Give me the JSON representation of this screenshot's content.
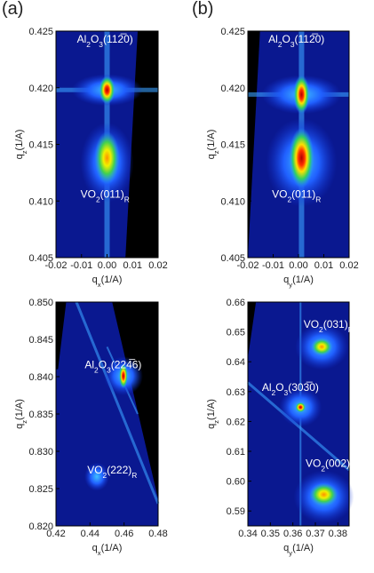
{
  "panel_labels": [
    "(a)",
    "(b)"
  ],
  "chart_data": [
    {
      "type": "image",
      "xlabel": [
        "q",
        "x",
        "(1/A)"
      ],
      "ylabel": [
        "q",
        "z",
        "(1/A)"
      ],
      "xlim": [
        -0.02,
        0.02
      ],
      "xticks": [
        -0.02,
        -0.01,
        {
          "value": 0,
          "label": "0.00"
        },
        0.01,
        0.02
      ],
      "ylim": [
        0.405,
        0.425
      ],
      "yticks": [
        0.405,
        {
          "value": 0.41,
          "label": "0.410"
        },
        0.415,
        {
          "value": 0.42,
          "label": "0.420"
        },
        0.425
      ],
      "annotations": [
        [
          "Al",
          "2",
          "O",
          "3",
          "(112̅0)"
        ],
        [
          "VO",
          "2",
          "(011)",
          "R"
        ]
      ]
    },
    {
      "type": "image",
      "xlabel": [
        "q",
        "y",
        "(1/A)"
      ],
      "ylabel": [
        "q",
        "z",
        "(1/A)"
      ],
      "xlim": [
        -0.02,
        0.02
      ],
      "xticks": [
        -0.02,
        -0.01,
        {
          "value": 0,
          "label": "0.00"
        },
        0.01,
        0.02
      ],
      "ylim": [
        0.405,
        0.425
      ],
      "yticks": [
        0.405,
        {
          "value": 0.41,
          "label": "0.410"
        },
        0.415,
        {
          "value": 0.42,
          "label": "0.420"
        },
        0.425
      ],
      "annotations": [
        [
          "Al",
          "2",
          "O",
          "3",
          "(112̅0)"
        ],
        [
          "VO",
          "2",
          "(011)",
          "R"
        ]
      ]
    },
    {
      "type": "image",
      "xlabel": [
        "q",
        "x",
        "(1/A)"
      ],
      "ylabel": [
        "q",
        "z",
        "(1/A)"
      ],
      "xlim": [
        0.42,
        0.48
      ],
      "xticks": [
        0.42,
        0.44,
        0.46,
        0.48
      ],
      "ylim": [
        0.82,
        0.85
      ],
      "yticks": [
        {
          "value": 0.82,
          "label": "0.820"
        },
        0.825,
        {
          "value": 0.83,
          "label": "0.830"
        },
        0.835,
        {
          "value": 0.84,
          "label": "0.840"
        },
        0.845,
        {
          "value": 0.85,
          "label": "0.850"
        }
      ],
      "annotations": [
        [
          "Al",
          "2",
          "O",
          "3",
          "(224̅6)"
        ],
        [
          "VO",
          "2",
          "(222)",
          "R"
        ]
      ]
    },
    {
      "type": "image",
      "xlabel": [
        "q",
        "y",
        "(1/A)"
      ],
      "ylabel": [
        "q",
        "z",
        "(1/A)"
      ],
      "xlim": [
        0.34,
        0.385
      ],
      "xticks": [
        0.34,
        0.35,
        0.36,
        0.37,
        0.38
      ],
      "ylim": [
        0.585,
        0.66
      ],
      "yticks": [
        0.59,
        {
          "value": 0.6,
          "label": "0.60"
        },
        0.61,
        0.62,
        0.63,
        0.64,
        0.65,
        0.66
      ],
      "annotations": [
        [
          "VO",
          "2",
          "(031)",
          "R"
        ],
        [
          "Al",
          "2",
          "O",
          "3",
          "(303̅0)"
        ],
        [
          "VO",
          "2",
          "(002)",
          "R"
        ]
      ]
    }
  ]
}
